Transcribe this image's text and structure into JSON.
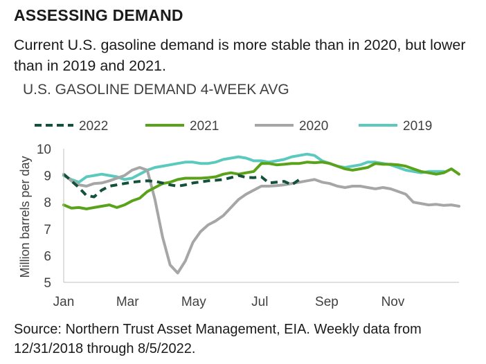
{
  "heading": "ASSESSING DEMAND",
  "subtitle": "Current U.S. gasoline demand is more stable than in 2020, but lower than in 2019 and 2021.",
  "source": "Source: Northern Trust Asset Management, EIA. Weekly data from 12/31/2018 through 8/5/2022.",
  "chart_data": {
    "type": "line",
    "title": "U.S. GASOLINE DEMAND 4-WEEK AVG",
    "ylabel": "Million barrels per day",
    "xlabel": "",
    "ylim": [
      5,
      10
    ],
    "yticks": [
      5,
      6,
      7,
      8,
      9,
      10
    ],
    "xlim": [
      0,
      52
    ],
    "xticks": [
      {
        "label": "Jan",
        "week": 0
      },
      {
        "label": "Mar",
        "week": 8.4
      },
      {
        "label": "May",
        "week": 17.1
      },
      {
        "label": "Jul",
        "week": 25.8
      },
      {
        "label": "Sep",
        "week": 34.6
      },
      {
        "label": "Nov",
        "week": 43.3
      }
    ],
    "grid": false,
    "legend_position": "top",
    "series": [
      {
        "name": "2022",
        "color": "#14503a",
        "style": "dashed",
        "x": [
          0,
          1,
          2,
          3,
          4,
          5,
          6,
          7,
          8,
          9,
          10,
          11,
          12,
          13,
          14,
          15,
          16,
          17,
          18,
          19,
          20,
          21,
          22,
          23,
          24,
          25,
          26,
          27,
          28,
          29,
          30,
          31
        ],
        "y": [
          9.05,
          8.8,
          8.55,
          8.25,
          8.2,
          8.45,
          8.6,
          8.65,
          8.7,
          8.75,
          8.78,
          8.8,
          8.78,
          8.72,
          8.65,
          8.6,
          8.65,
          8.72,
          8.76,
          8.8,
          8.82,
          8.85,
          8.92,
          9.0,
          8.93,
          8.92,
          8.95,
          8.72,
          8.75,
          8.78,
          8.65,
          8.85
        ]
      },
      {
        "name": "2021",
        "color": "#5aa21a",
        "style": "solid",
        "x": [
          0,
          1,
          2,
          3,
          4,
          5,
          6,
          7,
          8,
          9,
          10,
          11,
          12,
          13,
          14,
          15,
          16,
          17,
          18,
          19,
          20,
          21,
          22,
          23,
          24,
          25,
          26,
          27,
          28,
          29,
          30,
          31,
          32,
          33,
          34,
          35,
          36,
          37,
          38,
          39,
          40,
          41,
          42,
          43,
          44,
          45,
          46,
          47,
          48,
          49,
          50,
          51,
          52
        ],
        "y": [
          7.9,
          7.78,
          7.8,
          7.75,
          7.8,
          7.85,
          7.9,
          7.8,
          7.9,
          8.05,
          8.15,
          8.4,
          8.55,
          8.7,
          8.75,
          8.85,
          8.9,
          8.9,
          8.9,
          8.92,
          8.95,
          9.05,
          9.1,
          9.05,
          9.1,
          9.15,
          9.45,
          9.45,
          9.4,
          9.42,
          9.45,
          9.45,
          9.5,
          9.48,
          9.5,
          9.45,
          9.35,
          9.25,
          9.2,
          9.25,
          9.3,
          9.45,
          9.42,
          9.42,
          9.4,
          9.35,
          9.25,
          9.15,
          9.1,
          9.05,
          9.1,
          9.25,
          9.05
        ]
      },
      {
        "name": "2020",
        "color": "#a6a6a6",
        "style": "solid",
        "x": [
          0,
          1,
          2,
          3,
          4,
          5,
          6,
          7,
          8,
          9,
          10,
          11,
          12,
          13,
          14,
          15,
          16,
          17,
          18,
          19,
          20,
          21,
          22,
          23,
          24,
          25,
          26,
          27,
          28,
          29,
          30,
          31,
          32,
          33,
          34,
          35,
          36,
          37,
          38,
          39,
          40,
          41,
          42,
          43,
          44,
          45,
          46,
          47,
          48,
          49,
          50,
          51,
          52
        ],
        "y": [
          9.05,
          8.8,
          8.65,
          8.6,
          8.7,
          8.72,
          8.8,
          8.9,
          9.0,
          9.2,
          9.3,
          9.2,
          8.1,
          6.7,
          5.65,
          5.35,
          5.8,
          6.5,
          6.9,
          7.15,
          7.3,
          7.5,
          7.8,
          8.1,
          8.3,
          8.45,
          8.6,
          8.6,
          8.62,
          8.65,
          8.7,
          8.75,
          8.8,
          8.85,
          8.75,
          8.7,
          8.6,
          8.55,
          8.6,
          8.6,
          8.55,
          8.5,
          8.55,
          8.5,
          8.4,
          8.3,
          8.0,
          7.95,
          7.9,
          7.92,
          7.88,
          7.9,
          7.85
        ]
      },
      {
        "name": "2019",
        "color": "#5cc9be",
        "style": "solid",
        "x": [
          0,
          1,
          2,
          3,
          4,
          5,
          6,
          7,
          8,
          9,
          10,
          11,
          12,
          13,
          14,
          15,
          16,
          17,
          18,
          19,
          20,
          21,
          22,
          23,
          24,
          25,
          26,
          27,
          28,
          29,
          30,
          31,
          32,
          33,
          34,
          35,
          36,
          37,
          38,
          39,
          40,
          41,
          42,
          43,
          44,
          45,
          46,
          47,
          48,
          49,
          50
        ],
        "y": [
          9.0,
          8.85,
          8.75,
          8.95,
          9.0,
          9.05,
          9.0,
          8.95,
          8.85,
          8.9,
          9.05,
          9.2,
          9.3,
          9.35,
          9.4,
          9.45,
          9.5,
          9.5,
          9.45,
          9.45,
          9.5,
          9.6,
          9.65,
          9.7,
          9.65,
          9.55,
          9.55,
          9.5,
          9.55,
          9.6,
          9.7,
          9.75,
          9.8,
          9.75,
          9.55,
          9.45,
          9.35,
          9.3,
          9.35,
          9.4,
          9.5,
          9.5,
          9.45,
          9.4,
          9.3,
          9.2,
          9.15,
          9.1,
          9.15,
          9.15,
          9.15
        ]
      }
    ]
  }
}
